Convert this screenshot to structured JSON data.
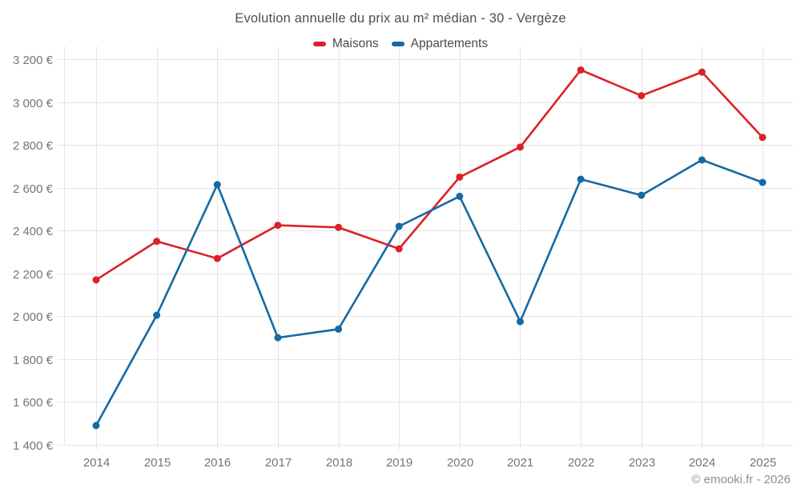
{
  "chart": {
    "title": "Evolution annuelle du prix au m² médian - 30 - Vergèze"
  },
  "footer": {
    "copyright": "© emooki.fr - 2026"
  },
  "chart_data": {
    "type": "line",
    "title": "Evolution annuelle du prix au m² médian - 30 - Vergèze",
    "x": [
      "2014",
      "2015",
      "2016",
      "2017",
      "2018",
      "2019",
      "2020",
      "2021",
      "2022",
      "2023",
      "2024",
      "2025"
    ],
    "series": [
      {
        "name": "Maisons",
        "color": "#dc2127",
        "values": [
          2170,
          2350,
          2270,
          2425,
          2415,
          2315,
          2650,
          2790,
          3150,
          3030,
          3140,
          2835
        ]
      },
      {
        "name": "Appartements",
        "color": "#1569a5",
        "values": [
          1490,
          2005,
          2615,
          1900,
          1940,
          2420,
          2560,
          1975,
          2640,
          2565,
          2730,
          2625
        ]
      }
    ],
    "ylabel": "",
    "xlabel": "",
    "ylim": [
      1400,
      3260
    ],
    "y_ticks": [
      {
        "value": 1400,
        "label": "1 400 €"
      },
      {
        "value": 1600,
        "label": "1 600 €"
      },
      {
        "value": 1800,
        "label": "1 800 €"
      },
      {
        "value": 2000,
        "label": "2 000 €"
      },
      {
        "value": 2200,
        "label": "2 200 €"
      },
      {
        "value": 2400,
        "label": "2 400 €"
      },
      {
        "value": 2600,
        "label": "2 600 €"
      },
      {
        "value": 2800,
        "label": "2 800 €"
      },
      {
        "value": 3000,
        "label": "3 000 €"
      },
      {
        "value": 3200,
        "label": "3 200 €"
      }
    ],
    "grid": true,
    "legend_position": "top",
    "colors": {
      "grid_line": "#e5e5e5",
      "axis_label": "#757575",
      "title_text": "#4f4f4f"
    }
  }
}
